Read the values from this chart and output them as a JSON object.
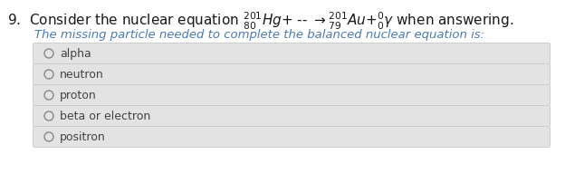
{
  "question_num": "9.",
  "question_text_before": "  Consider the nuclear equation ",
  "equation_part": "$\\mathdefault{^{201}_{80}}Hg + $ -- $ \\rightarrow \\mathdefault{^{201}_{79}}Au + \\mathdefault{^{0}_{0}}\\gamma$",
  "question_text_after": " when answering.",
  "sub_question": "The missing particle needed to complete the balanced nuclear equation is:",
  "options": [
    "alpha",
    "neutron",
    "proton",
    "beta or electron",
    "positron"
  ],
  "bg_color": "#ffffff",
  "option_bg_color": "#e3e3e3",
  "option_border_color": "#c8c8c8",
  "question_color": "#1a1a1a",
  "sub_question_color": "#4a7ab5",
  "option_text_color": "#444444",
  "circle_color": "#888888",
  "q_fontsize": 11,
  "sub_fontsize": 9.5,
  "opt_fontsize": 9
}
